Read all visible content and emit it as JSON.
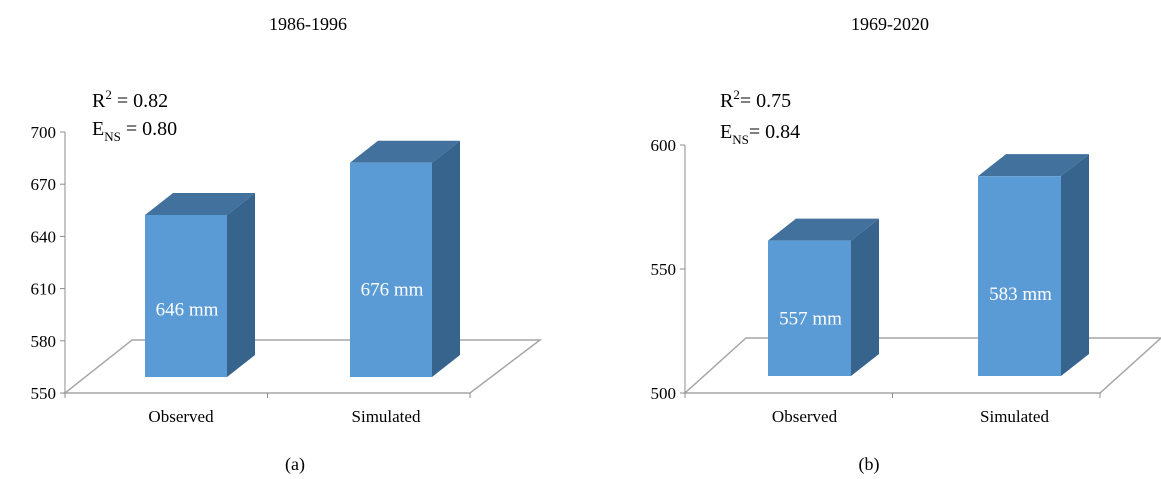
{
  "chart_data": [
    {
      "type": "bar",
      "title": "1986-1996",
      "caption": "(a)",
      "categories": [
        "Observed",
        "Simulated"
      ],
      "values": [
        646,
        676
      ],
      "value_labels": [
        "646 mm",
        "676 mm"
      ],
      "unit": "mm",
      "yticks": [
        "550",
        "580",
        "610",
        "640",
        "670",
        "700"
      ],
      "ylim": [
        550,
        700
      ],
      "stats": [
        {
          "symbol": "R",
          "sup": "2",
          "sub": "",
          "text": " = 0.82"
        },
        {
          "symbol": "E",
          "sup": "",
          "sub": "NS",
          "text": " = 0.80"
        }
      ],
      "style": "3d-bar",
      "grid": false,
      "legend": "none",
      "colors": {
        "bar_front": "#5b9bd5",
        "bar_top": "#41719c",
        "bar_side": "#37648d",
        "floor": "#a6a6a6",
        "value_label": "#ffffff"
      }
    },
    {
      "type": "bar",
      "title": "1969-2020",
      "caption": "(b)",
      "categories": [
        "Observed",
        "Simulated"
      ],
      "values": [
        557,
        583
      ],
      "value_labels": [
        "557 mm",
        "583 mm"
      ],
      "unit": "mm",
      "yticks": [
        "500",
        "550",
        "600"
      ],
      "ylim": [
        500,
        600
      ],
      "stats": [
        {
          "symbol": "R",
          "sup": "2",
          "sub": "",
          "text": "= 0.75"
        },
        {
          "symbol": "E",
          "sup": "",
          "sub": "NS",
          "text": "= 0.84"
        }
      ],
      "style": "3d-bar",
      "grid": false,
      "legend": "none",
      "colors": {
        "bar_front": "#5b9bd5",
        "bar_top": "#41719c",
        "bar_side": "#37648d",
        "floor": "#a6a6a6",
        "value_label": "#ffffff"
      }
    }
  ]
}
